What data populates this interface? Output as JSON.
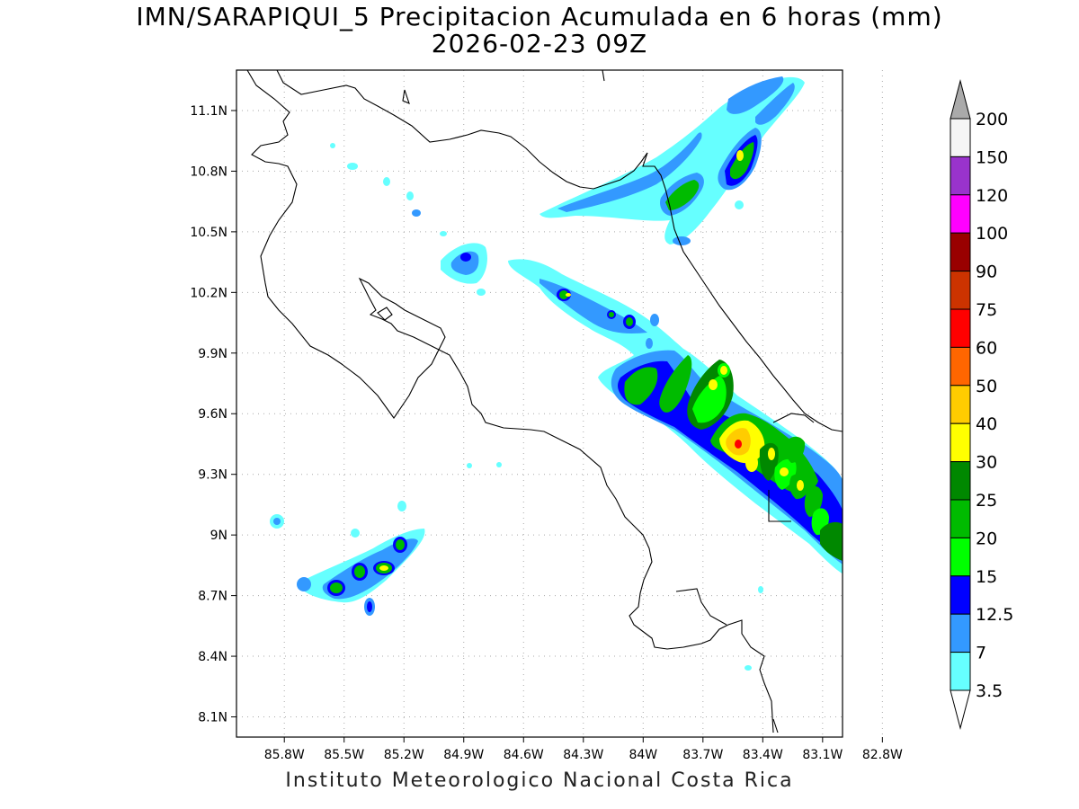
{
  "title": {
    "line1": "IMN/SARAPIQUI_5 Precipitacion Acumulada en 6 horas (mm)",
    "line2": "2026-02-23 09Z"
  },
  "footer": "Instituto Meteorologico Nacional Costa Rica",
  "map": {
    "lat_ticks": [
      {
        "value": 11.1,
        "label": "11.1N"
      },
      {
        "value": 10.8,
        "label": "10.8N"
      },
      {
        "value": 10.5,
        "label": "10.5N"
      },
      {
        "value": 10.2,
        "label": "10.2N"
      },
      {
        "value": 9.9,
        "label": "9.9N"
      },
      {
        "value": 9.6,
        "label": "9.6N"
      },
      {
        "value": 9.3,
        "label": "9.3N"
      },
      {
        "value": 9.0,
        "label": "9N"
      },
      {
        "value": 8.7,
        "label": "8.7N"
      },
      {
        "value": 8.4,
        "label": "8.4N"
      },
      {
        "value": 8.1,
        "label": "8.1N"
      }
    ],
    "lon_ticks": [
      {
        "value": -85.8,
        "label": "85.8W"
      },
      {
        "value": -85.5,
        "label": "85.5W"
      },
      {
        "value": -85.2,
        "label": "85.2W"
      },
      {
        "value": -84.9,
        "label": "84.9W"
      },
      {
        "value": -84.6,
        "label": "84.6W"
      },
      {
        "value": -84.3,
        "label": "84.3W"
      },
      {
        "value": -84.0,
        "label": "84W"
      },
      {
        "value": -83.7,
        "label": "83.7W"
      },
      {
        "value": -83.4,
        "label": "83.4W"
      },
      {
        "value": -83.1,
        "label": "83.1W"
      },
      {
        "value": -82.8,
        "label": "82.8W"
      }
    ],
    "lon_range": [
      -86.04,
      -83.0
    ],
    "lat_range": [
      8.0,
      11.3
    ]
  },
  "colorbar": {
    "labels": [
      "200",
      "150",
      "120",
      "100",
      "90",
      "75",
      "60",
      "50",
      "40",
      "30",
      "25",
      "20",
      "15",
      "12.5",
      "7",
      "3.5"
    ],
    "colors": [
      "#f5f5f5",
      "#9933cc",
      "#ff00ff",
      "#990000",
      "#cc3300",
      "#ff0000",
      "#ff6600",
      "#ffcc00",
      "#ffff00",
      "#008800",
      "#00bb00",
      "#00ff00",
      "#0000ff",
      "#3399ff",
      "#66ffff"
    ],
    "top_arrow_color": "#aaaaaa",
    "bottom_arrow_color": "#ffffff"
  }
}
